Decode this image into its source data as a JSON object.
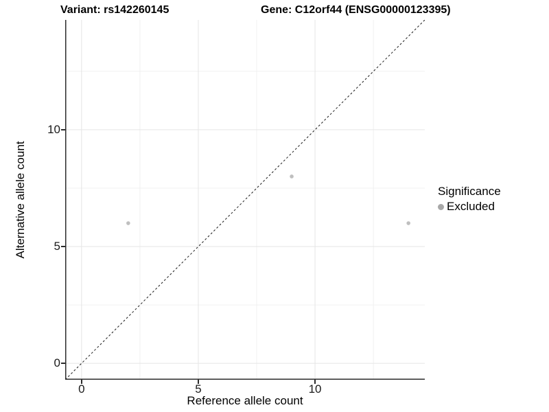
{
  "titles": {
    "variant": "Variant: rs142260145",
    "gene": "Gene: C12orf44 (ENSG00000123395)"
  },
  "axes": {
    "x_label": "Reference allele count",
    "y_label": "Alternative allele count",
    "x_tick_labels": [
      "0",
      "5",
      "10"
    ],
    "y_tick_labels": [
      "0",
      "5",
      "10"
    ]
  },
  "legend": {
    "title": "Significance",
    "items": [
      {
        "label": "Excluded",
        "color": "#a8a8a8"
      }
    ]
  },
  "colors": {
    "background": "#ffffff",
    "axis_line": "#2b2b2b",
    "grid_major": "#e5e5e5",
    "grid_minor": "#f0f0f0",
    "identity_line": "#1a1a1a",
    "point_excluded": "#bfbfbf"
  },
  "chart_data": {
    "type": "scatter",
    "title": "Variant: rs142260145   Gene: C12orf44 (ENSG00000123395)",
    "xlabel": "Reference allele count",
    "ylabel": "Alternative allele count",
    "xlim": [
      -0.7,
      14.7
    ],
    "ylim": [
      -0.7,
      14.7
    ],
    "x_ticks": [
      0,
      5,
      10
    ],
    "y_ticks": [
      0,
      5,
      10
    ],
    "grid": {
      "major": [
        0,
        5,
        10
      ],
      "minor": [
        2.5,
        7.5,
        12.5
      ]
    },
    "series": [
      {
        "name": "Excluded",
        "color": "#bfbfbf",
        "point_radius": 2.8,
        "points": [
          [
            2,
            6
          ],
          [
            9,
            8
          ],
          [
            14,
            6
          ]
        ]
      }
    ],
    "identity_line": {
      "equation": "y = x",
      "style": "dashed",
      "color": "#1a1a1a",
      "dash": [
        3,
        3
      ]
    },
    "legend": {
      "title": "Significance",
      "position": "right"
    },
    "grid_on": true,
    "background": "#ffffff"
  }
}
